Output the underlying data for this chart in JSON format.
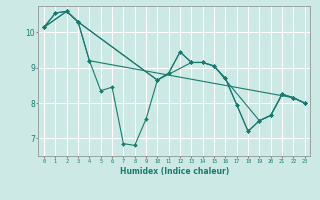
{
  "xlabel": "Humidex (Indice chaleur)",
  "ylabel": "",
  "background_color": "#cce9e6",
  "line_color": "#1a7a6e",
  "grid_color": "#ffffff",
  "xlim": [
    -0.5,
    23.5
  ],
  "ylim": [
    6.5,
    10.75
  ],
  "yticks": [
    7,
    8,
    9,
    10
  ],
  "xticks": [
    0,
    1,
    2,
    3,
    4,
    5,
    6,
    7,
    8,
    9,
    10,
    11,
    12,
    13,
    14,
    15,
    16,
    17,
    18,
    19,
    20,
    21,
    22,
    23
  ],
  "series": [
    {
      "x": [
        0,
        1,
        2,
        3,
        4,
        5,
        6,
        7,
        8,
        9,
        10,
        11,
        12,
        13,
        14,
        15,
        16,
        17,
        18,
        19,
        20,
        21,
        22,
        23
      ],
      "y": [
        10.15,
        10.55,
        10.6,
        10.3,
        9.2,
        8.35,
        8.45,
        6.85,
        6.8,
        7.55,
        8.65,
        8.85,
        9.45,
        9.15,
        9.15,
        9.05,
        8.7,
        7.95,
        7.2,
        7.5,
        7.65,
        8.25,
        8.15,
        8.0
      ]
    },
    {
      "x": [
        0,
        1,
        2,
        3,
        4,
        22,
        23
      ],
      "y": [
        10.15,
        10.55,
        10.6,
        10.3,
        9.2,
        8.15,
        8.0
      ]
    },
    {
      "x": [
        0,
        2,
        3,
        10,
        11,
        12,
        13,
        14,
        15,
        16,
        17,
        18,
        19,
        20,
        21,
        22,
        23
      ],
      "y": [
        10.15,
        10.6,
        10.3,
        8.65,
        8.85,
        9.45,
        9.15,
        9.15,
        9.05,
        8.7,
        7.95,
        7.2,
        7.5,
        7.65,
        8.25,
        8.15,
        8.0
      ]
    },
    {
      "x": [
        0,
        2,
        3,
        10,
        13,
        14,
        15,
        19,
        20,
        21,
        22,
        23
      ],
      "y": [
        10.15,
        10.6,
        10.3,
        8.65,
        9.15,
        9.15,
        9.05,
        7.5,
        7.65,
        8.25,
        8.15,
        8.0
      ]
    }
  ]
}
